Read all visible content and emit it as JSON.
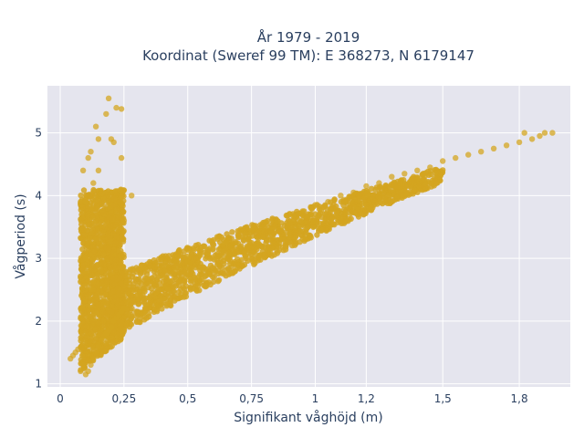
{
  "chart_data": {
    "type": "scatter",
    "title": "År 1979 - 2019",
    "subtitle": "Koordinat (Sweref 99 TM): E 368273, N 6179147",
    "xlabel": "Signifikant våghöjd (m)",
    "ylabel": "Vågperiod (s)",
    "xlim": [
      -0.05,
      2.0
    ],
    "ylim": [
      0.95,
      5.75
    ],
    "x_ticks": [
      0,
      0.25,
      0.5,
      0.75,
      1,
      1.2,
      1.5,
      1.8
    ],
    "x_tick_labels": [
      "0",
      "0,25",
      "0,5",
      "0,75",
      "1",
      "1,2",
      "1,5",
      "1,8"
    ],
    "y_ticks": [
      1,
      2,
      3,
      4,
      5
    ],
    "y_tick_labels": [
      "1",
      "2",
      "3",
      "4",
      "5"
    ],
    "grid": true,
    "marker_color": "#d4a520",
    "background_color": "#e5e5ee",
    "series": [
      {
        "values_note": "dense cloud of ~hourly observations; representative points",
        "x": [
          0.04,
          0.05,
          0.06,
          0.07,
          0.08,
          0.08,
          0.09,
          0.09,
          0.1,
          0.1,
          0.11,
          0.11,
          0.12,
          0.12,
          0.13,
          0.13,
          0.14,
          0.14,
          0.15,
          0.15,
          0.16,
          0.16,
          0.17,
          0.18,
          0.19,
          0.2,
          0.21,
          0.22,
          0.23,
          0.24,
          0.25,
          0.27,
          0.3,
          0.33,
          0.36,
          0.4,
          0.45,
          0.5,
          0.55,
          0.6,
          0.65,
          0.7,
          0.75,
          0.8,
          0.85,
          0.9,
          0.95,
          1.0,
          1.05,
          1.1,
          1.15,
          1.2,
          1.25,
          1.3,
          1.35,
          1.4,
          1.45,
          1.5,
          1.55,
          1.6,
          1.65,
          1.7,
          1.75,
          1.8,
          1.85,
          1.9,
          0.19,
          0.22,
          0.24,
          0.2,
          0.21,
          0.18,
          0.12,
          0.1,
          0.24,
          0.28,
          0.15,
          0.25,
          0.14,
          1.82,
          1.88,
          1.93
        ],
        "y": [
          1.4,
          1.45,
          1.5,
          1.55,
          1.2,
          3.9,
          1.3,
          4.4,
          1.15,
          3.0,
          1.2,
          4.6,
          1.3,
          2.5,
          1.4,
          4.2,
          1.5,
          3.3,
          1.6,
          4.4,
          1.7,
          2.8,
          1.75,
          1.8,
          1.85,
          1.9,
          2.0,
          2.05,
          2.1,
          2.15,
          2.2,
          2.3,
          2.4,
          2.5,
          2.6,
          2.7,
          2.8,
          2.95,
          3.05,
          3.15,
          3.25,
          3.35,
          3.45,
          3.5,
          3.6,
          3.7,
          3.75,
          3.85,
          3.9,
          4.0,
          4.05,
          4.15,
          4.2,
          4.3,
          4.35,
          4.4,
          4.45,
          4.55,
          4.6,
          4.65,
          4.7,
          4.75,
          4.8,
          4.85,
          4.9,
          5.0,
          5.55,
          5.4,
          5.38,
          4.9,
          4.85,
          5.3,
          4.7,
          3.9,
          4.6,
          4.0,
          4.9,
          3.6,
          5.1,
          5.0,
          4.95,
          5.0
        ]
      }
    ]
  }
}
